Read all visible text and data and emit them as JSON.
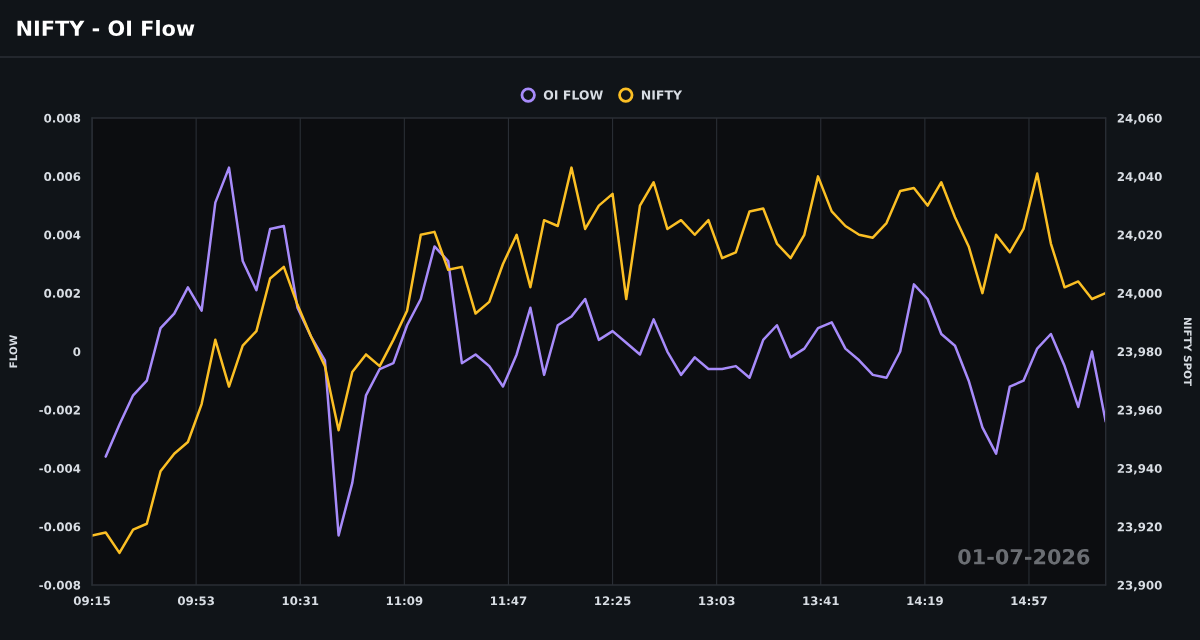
{
  "chart_data": {
    "type": "line",
    "title": "NIFTY - OI Flow",
    "ylabel": "FLOW",
    "y2label": "NIFTY SPOT",
    "annotations": [
      "01-07-2026"
    ],
    "x": [
      9.25,
      9.3333,
      9.4167,
      9.5,
      9.5833,
      9.6667,
      9.75,
      9.8333,
      9.9167,
      10.0,
      10.0833,
      10.1667,
      10.25,
      10.3333,
      10.4167,
      10.5,
      10.5833,
      10.6667,
      10.75,
      10.8333,
      10.9167,
      11.0,
      11.0833,
      11.1667,
      11.25,
      11.3333,
      11.4167,
      11.5,
      11.5833,
      11.6667,
      11.75,
      11.8333,
      11.9167,
      12.0,
      12.0833,
      12.1667,
      12.25,
      12.3333,
      12.4167,
      12.5,
      12.5833,
      12.6667,
      12.75,
      12.8333,
      12.9167,
      13.0,
      13.0833,
      13.1667,
      13.25,
      13.3333,
      13.4167,
      13.5,
      13.5833,
      13.6667,
      13.75,
      13.8333,
      13.9167,
      14.0,
      14.0833,
      14.1667,
      14.25,
      14.3333,
      14.4167,
      14.5,
      14.5833,
      14.6667,
      14.75,
      14.8333,
      14.9167,
      15.0,
      15.0833,
      15.1667,
      15.25,
      15.3333,
      15.4167
    ],
    "series": [
      {
        "name": "OI FLOW",
        "color": "#a78bfa",
        "values": [
          null,
          -0.0036,
          -0.0025,
          -0.0015,
          -0.001,
          0.0008,
          0.0013,
          0.0022,
          0.0014,
          0.0051,
          0.0063,
          0.0031,
          0.0021,
          0.0042,
          0.0043,
          0.0015,
          0.0005,
          -0.0003,
          -0.0063,
          -0.0045,
          -0.0015,
          -0.0006,
          -0.0004,
          0.0009,
          0.0018,
          0.0036,
          0.0031,
          -0.0004,
          -0.0001,
          -0.0005,
          -0.0012,
          -0.0001,
          0.0015,
          -0.0008,
          0.0009,
          0.0012,
          0.0018,
          0.0004,
          0.0007,
          0.0003,
          -0.0001,
          0.0011,
          0.0,
          -0.0008,
          -0.0002,
          -0.0006,
          -0.0006,
          -0.0005,
          -0.0009,
          0.0004,
          0.0009,
          -0.0002,
          0.0001,
          0.0008,
          0.001,
          0.0001,
          -0.0003,
          -0.0008,
          -0.0009,
          0.0,
          0.0023,
          0.0018,
          0.0006,
          0.0002,
          -0.001,
          -0.0026,
          -0.0035,
          -0.0012,
          -0.001,
          0.0001,
          0.0006,
          -0.0005,
          -0.0019,
          0.0,
          -0.0024
        ]
      },
      {
        "name": "NIFTY",
        "color": "#fbbf24",
        "axis": "y2",
        "values": [
          23917,
          23918,
          23911,
          23919,
          23921,
          23939,
          23945,
          23949,
          23962,
          23984,
          23968,
          23982,
          23987,
          24005,
          24009,
          23996,
          23985,
          23975,
          23953,
          23973,
          23979,
          23975,
          23984,
          23994,
          24020,
          24021,
          24008,
          24009,
          23993,
          23997,
          24010,
          24020,
          24002,
          24025,
          24023,
          24043,
          24022,
          24030,
          24034,
          23998,
          24030,
          24038,
          24022,
          24025,
          24020,
          24025,
          24012,
          24014,
          24028,
          24029,
          24017,
          24012,
          24020,
          24040,
          24028,
          24023,
          24020,
          24019,
          24024,
          24035,
          24036,
          24030,
          24038,
          24026,
          24016,
          24000,
          24020,
          24014,
          24022,
          24041,
          24017,
          24002,
          24004,
          23998,
          24000
        ]
      }
    ],
    "xlim": [
      9.25,
      15.4167
    ],
    "xticks": [
      {
        "value": 9.25,
        "label": "09:15"
      },
      {
        "value": 9.8833,
        "label": "09:53"
      },
      {
        "value": 10.5167,
        "label": "10:31"
      },
      {
        "value": 11.15,
        "label": "11:09"
      },
      {
        "value": 11.7833,
        "label": "11:47"
      },
      {
        "value": 12.4167,
        "label": "12:25"
      },
      {
        "value": 13.05,
        "label": "13:03"
      },
      {
        "value": 13.6833,
        "label": "13:41"
      },
      {
        "value": 14.3167,
        "label": "14:19"
      },
      {
        "value": 14.95,
        "label": "14:57"
      }
    ],
    "ylim": [
      -0.008,
      0.008
    ],
    "yticks": [
      -0.008,
      -0.006,
      -0.004,
      -0.002,
      0,
      0.002,
      0.004,
      0.006,
      0.008
    ],
    "y2lim": [
      23900,
      24060
    ],
    "y2ticks": [
      {
        "value": 23900,
        "label": "23,900"
      },
      {
        "value": 23920,
        "label": "23,920"
      },
      {
        "value": 23940,
        "label": "23,940"
      },
      {
        "value": 23960,
        "label": "23,960"
      },
      {
        "value": 23980,
        "label": "23,980"
      },
      {
        "value": 24000,
        "label": "24,000"
      },
      {
        "value": 24020,
        "label": "24,020"
      },
      {
        "value": 24040,
        "label": "24,040"
      },
      {
        "value": 24060,
        "label": "24,060"
      }
    ],
    "grid": "x",
    "legend": "top",
    "marker": "none",
    "line_style": "solid"
  }
}
